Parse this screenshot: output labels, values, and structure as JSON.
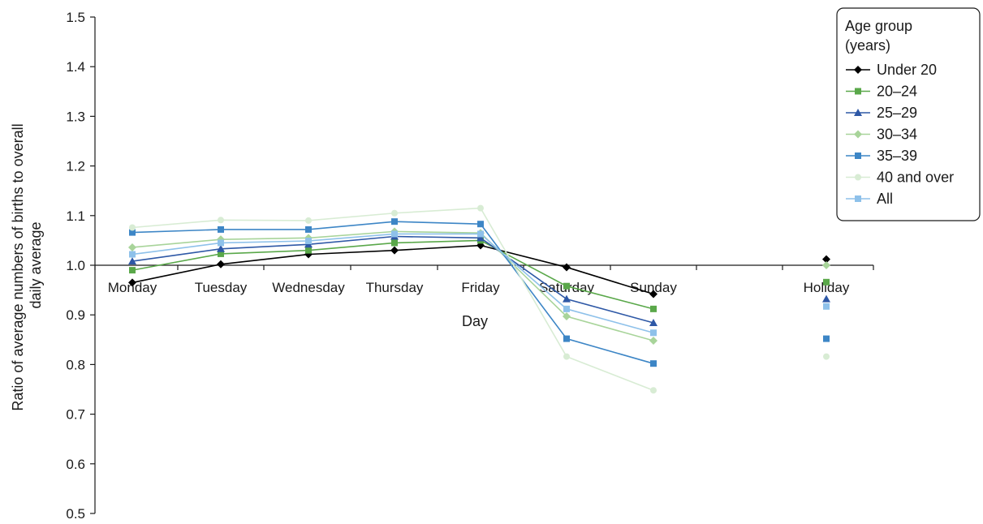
{
  "chart_data": {
    "type": "line",
    "xlabel": "Day",
    "ylabel_lines": [
      "Ratio of average numbers of births to overall",
      "daily average"
    ],
    "ylim": [
      0.5,
      1.5
    ],
    "yticks": [
      "0.5",
      "0.6",
      "0.7",
      "0.8",
      "0.9",
      "1.0",
      "1.1",
      "1.2",
      "1.3",
      "1.4",
      "1.5"
    ],
    "x_baseline": 1.0,
    "categories": [
      "Monday",
      "Tuesday",
      "Wednesday",
      "Thursday",
      "Friday",
      "Saturday",
      "Sunday",
      "Holiday"
    ],
    "connected_categories": 7,
    "legend": {
      "title_lines": [
        "Age group",
        "(years)"
      ],
      "placement": "top-right"
    },
    "series": [
      {
        "name": "Under 20",
        "color": "#000000",
        "marker": "diamond",
        "values": [
          0.965,
          1.002,
          1.022,
          1.03,
          1.04,
          0.996,
          0.942,
          1.012
        ]
      },
      {
        "name": "20–24",
        "color": "#5aa84a",
        "marker": "square",
        "values": [
          0.99,
          1.023,
          1.03,
          1.045,
          1.05,
          0.958,
          0.912,
          0.966
        ]
      },
      {
        "name": "25–29",
        "color": "#2e58a6",
        "marker": "triangle",
        "values": [
          1.008,
          1.033,
          1.042,
          1.058,
          1.055,
          0.932,
          0.884,
          0.932
        ]
      },
      {
        "name": "30–34",
        "color": "#a8d49a",
        "marker": "diamond",
        "values": [
          1.036,
          1.052,
          1.055,
          1.068,
          1.065,
          0.897,
          0.848,
          1.0
        ]
      },
      {
        "name": "35–39",
        "color": "#3d86c6",
        "marker": "square",
        "values": [
          1.066,
          1.072,
          1.072,
          1.088,
          1.083,
          0.852,
          0.802,
          0.852
        ]
      },
      {
        "name": "40 and over",
        "color": "#d8ecd4",
        "marker": "circle",
        "values": [
          1.076,
          1.091,
          1.09,
          1.105,
          1.115,
          0.816,
          0.748,
          0.816
        ]
      },
      {
        "name": "All",
        "color": "#8ec1ea",
        "marker": "square",
        "values": [
          1.022,
          1.045,
          1.049,
          1.063,
          1.063,
          0.912,
          0.864,
          0.917
        ]
      }
    ]
  }
}
